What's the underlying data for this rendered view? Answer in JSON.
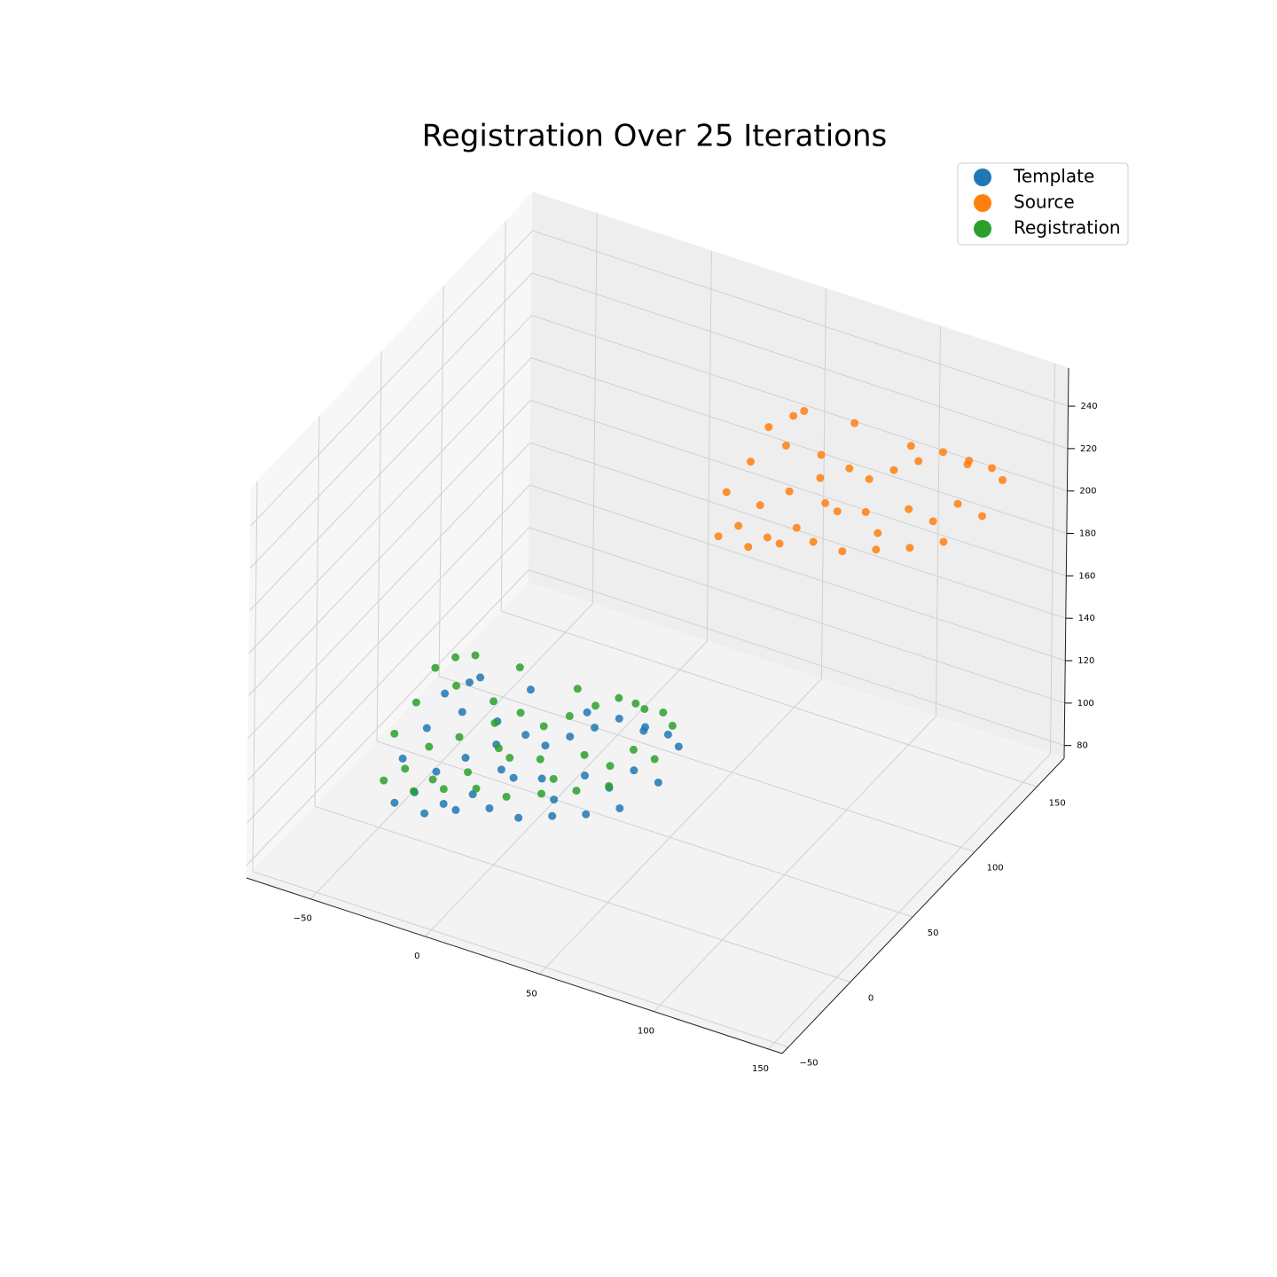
{
  "chart_data": {
    "type": "scatter3d",
    "title": "Registration Over 25 Iterations",
    "legend": "upper right",
    "grid": true,
    "xlim": [
      -78,
      156
    ],
    "ylim": [
      -55,
      172
    ],
    "zlim": [
      74,
      258
    ],
    "xticks": [
      {
        "value": -50,
        "label": "−50"
      },
      0,
      50,
      100,
      150
    ],
    "yticks": [
      {
        "value": -50,
        "label": "−50"
      },
      0,
      50,
      100,
      150
    ],
    "zticks": [
      80,
      100,
      120,
      140,
      160,
      180,
      200,
      220,
      240
    ],
    "series": [
      {
        "name": "Template",
        "color": "#1f77b4",
        "x": [
          -40,
          -35,
          -32,
          -30,
          -28,
          -25,
          -22,
          -20,
          -18,
          -15,
          -12,
          -10,
          -5,
          0,
          3,
          6,
          10,
          14,
          18,
          22,
          26,
          30,
          34,
          38,
          42,
          46,
          50,
          -38,
          -26,
          -14,
          -2,
          8,
          20,
          32,
          44,
          -30,
          -6,
          16,
          36,
          48
        ],
        "y": [
          0,
          10,
          -5,
          15,
          5,
          20,
          0,
          25,
          10,
          30,
          5,
          20,
          15,
          25,
          10,
          30,
          20,
          35,
          15,
          40,
          25,
          45,
          30,
          50,
          35,
          55,
          40,
          -10,
          -8,
          -5,
          0,
          5,
          10,
          15,
          20,
          35,
          40,
          45,
          55,
          60
        ],
        "z": [
          110,
          120,
          100,
          135,
          105,
          125,
          95,
          140,
          112,
          118,
          100,
          115,
          108,
          120,
          110,
          114,
          106,
          118,
          102,
          122,
          110,
          126,
          104,
          120,
          112,
          118,
          106,
          96,
          94,
          98,
          100,
          96,
          98,
          100,
          104,
          128,
          130,
          124,
          118,
          110
        ]
      },
      {
        "name": "Source",
        "color": "#ff7f0e",
        "x": [
          43,
          48,
          51,
          53,
          55,
          58,
          61,
          63,
          65,
          68,
          71,
          73,
          78,
          83,
          86,
          89,
          93,
          97,
          101,
          105,
          109,
          113,
          117,
          121,
          125,
          129,
          133,
          45,
          57,
          69,
          81,
          91,
          103,
          115,
          127,
          53,
          77,
          99,
          119,
          131
        ],
        "y": [
          106,
          116,
          101,
          121,
          111,
          126,
          106,
          131,
          116,
          136,
          111,
          126,
          121,
          131,
          116,
          136,
          126,
          141,
          121,
          146,
          131,
          151,
          136,
          156,
          141,
          161,
          146,
          96,
          98,
          101,
          106,
          111,
          116,
          121,
          126,
          141,
          146,
          151,
          161,
          166
        ],
        "z": [
          200,
          210,
          190,
          225,
          195,
          215,
          185,
          230,
          202,
          208,
          190,
          205,
          198,
          210,
          200,
          204,
          196,
          208,
          192,
          212,
          200,
          216,
          194,
          210,
          202,
          208,
          196,
          186,
          184,
          188,
          190,
          186,
          188,
          190,
          194,
          218,
          220,
          214,
          208,
          200
        ]
      },
      {
        "name": "Registration",
        "color": "#2ca02c",
        "x": [
          -48,
          -44,
          -40,
          -38,
          -35,
          -32,
          -30,
          -26,
          -24,
          -20,
          -18,
          -14,
          -10,
          -6,
          -2,
          2,
          6,
          10,
          14,
          18,
          22,
          26,
          30,
          34,
          38,
          40,
          44,
          -46,
          -34,
          -22,
          -10,
          0,
          12,
          24,
          36,
          -40,
          -14,
          8,
          28,
          42
        ],
        "y": [
          8,
          18,
          2,
          22,
          12,
          28,
          6,
          32,
          16,
          36,
          12,
          26,
          22,
          32,
          16,
          36,
          26,
          42,
          22,
          48,
          32,
          52,
          38,
          58,
          42,
          62,
          48,
          -4,
          -2,
          0,
          4,
          10,
          16,
          22,
          26,
          42,
          46,
          52,
          62,
          66
        ],
        "z": [
          114,
          124,
          104,
          140,
          110,
          130,
          100,
          144,
          116,
          122,
          104,
          120,
          112,
          124,
          114,
          118,
          110,
          122,
          106,
          126,
          114,
          130,
          108,
          124,
          116,
          122,
          110,
          100,
          98,
          102,
          104,
          100,
          102,
          104,
          108,
          132,
          134,
          128,
          122,
          114
        ]
      }
    ]
  }
}
